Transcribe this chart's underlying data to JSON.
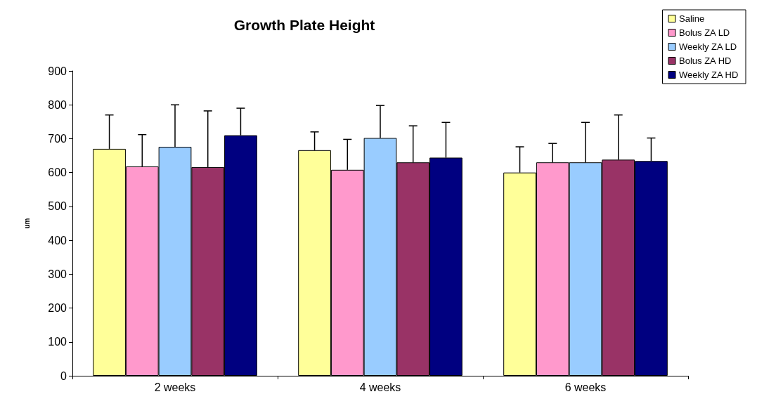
{
  "chart_data": {
    "type": "bar",
    "title": "Growth Plate Height",
    "ylabel": "um",
    "categories": [
      "2 weeks",
      "4 weeks",
      "6 weeks"
    ],
    "ylim": [
      0,
      900
    ],
    "yticks": [
      0,
      100,
      200,
      300,
      400,
      500,
      600,
      700,
      800,
      900
    ],
    "grid": false,
    "legend": "top right",
    "series": [
      {
        "name": "Saline",
        "color": "#ffff99",
        "values": [
          670,
          666,
          600
        ],
        "errors": [
          [
            670,
            770
          ],
          [
            666,
            720
          ],
          [
            600,
            676
          ]
        ]
      },
      {
        "name": "Bolus ZA LD",
        "color": "#ff99cc",
        "values": [
          618,
          608,
          630
        ],
        "errors": [
          [
            618,
            712
          ],
          [
            608,
            698
          ],
          [
            630,
            686
          ]
        ]
      },
      {
        "name": "Weekly ZA LD",
        "color": "#99ccff",
        "values": [
          676,
          702,
          630
        ],
        "errors": [
          [
            676,
            800
          ],
          [
            702,
            798
          ],
          [
            630,
            748
          ]
        ]
      },
      {
        "name": "Bolus ZA HD",
        "color": "#993366",
        "values": [
          616,
          630,
          638
        ],
        "errors": [
          [
            616,
            782
          ],
          [
            630,
            738
          ],
          [
            638,
            770
          ]
        ]
      },
      {
        "name": "Weekly ZA HD",
        "color": "#000080",
        "values": [
          710,
          644,
          634
        ],
        "errors": [
          [
            710,
            790
          ],
          [
            644,
            748
          ],
          [
            634,
            702
          ]
        ]
      }
    ]
  }
}
